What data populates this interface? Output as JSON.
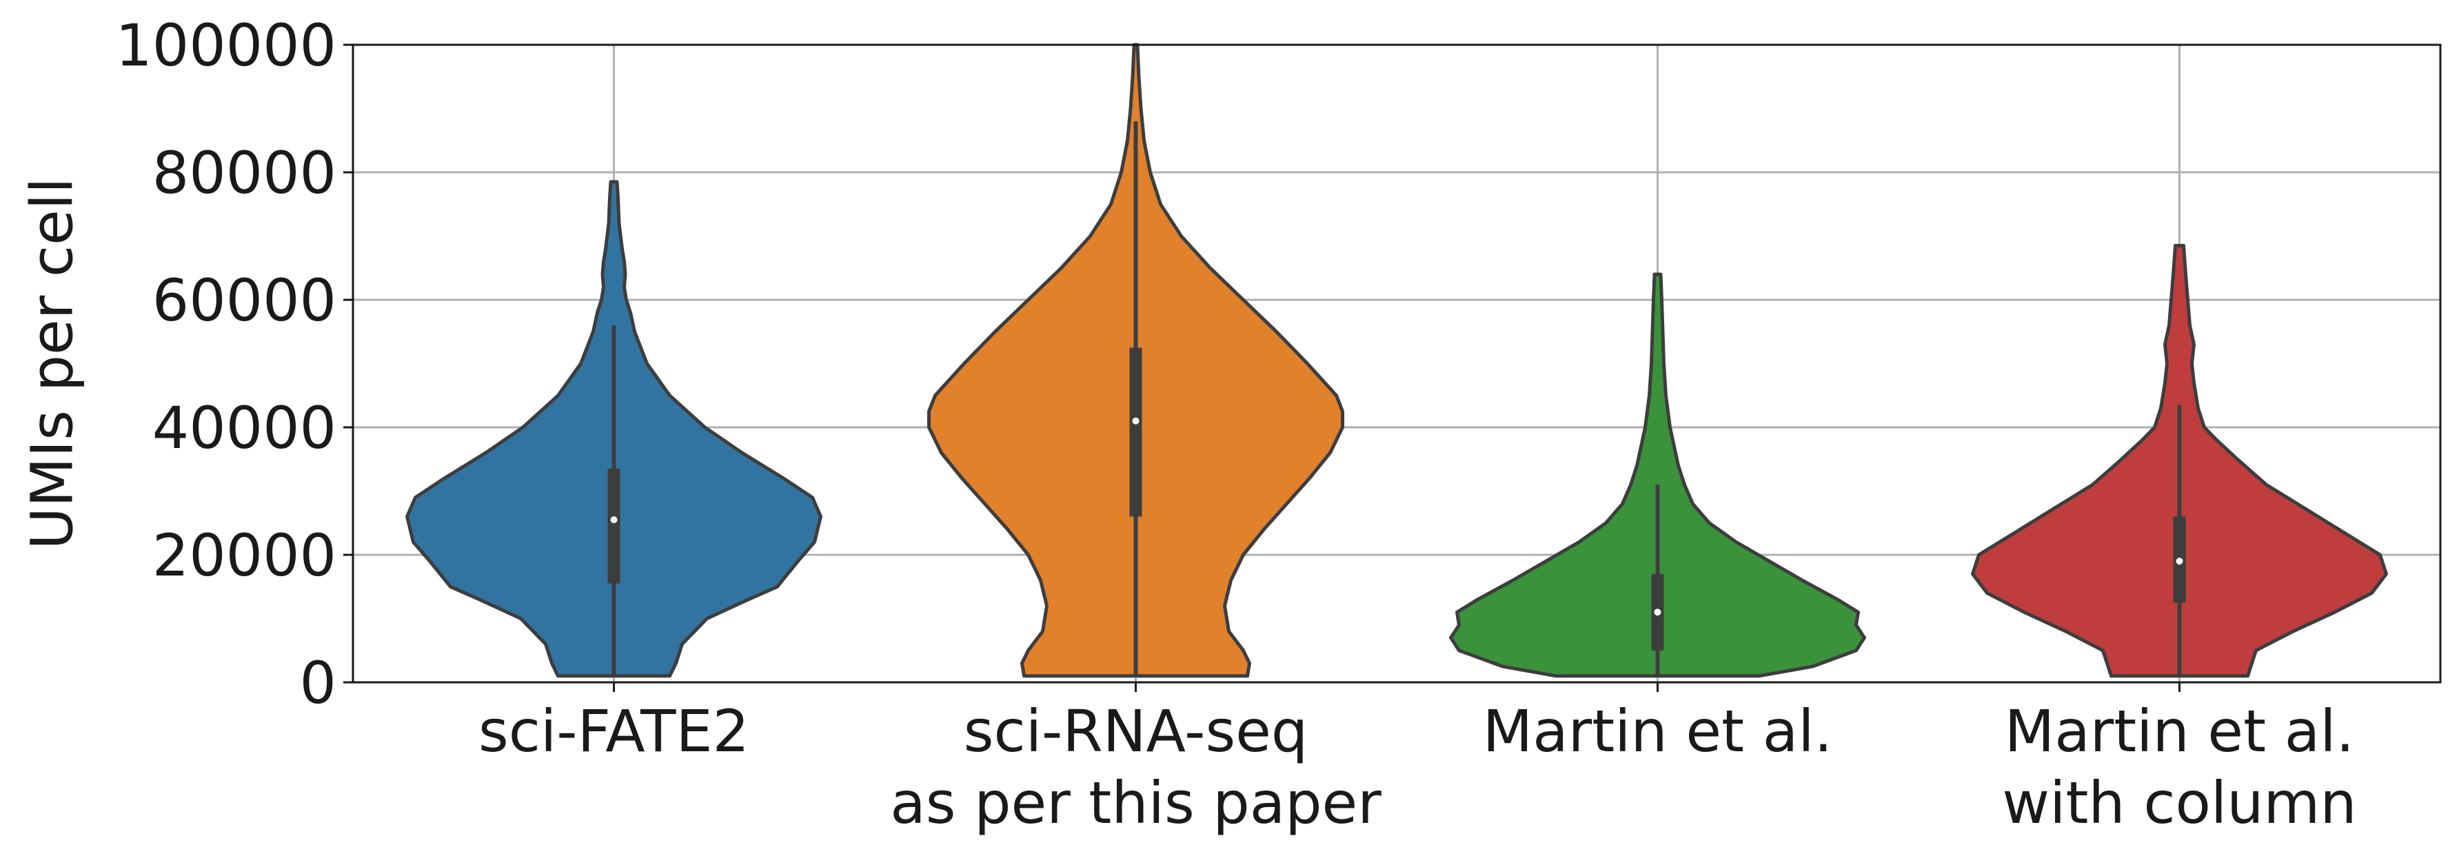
{
  "chart_data": {
    "type": "violin",
    "ylabel": "UMIs per cell",
    "xlabel": "",
    "ylim": [
      0,
      100000
    ],
    "yticks": [
      0,
      20000,
      40000,
      60000,
      80000,
      100000
    ],
    "ytick_labels": [
      "0",
      "20000",
      "40000",
      "60000",
      "80000",
      "100000"
    ],
    "grid": true,
    "categories": [
      [
        "sci-FATE2"
      ],
      [
        "sci-RNA-seq",
        "as per this paper"
      ],
      [
        "Martin et al."
      ],
      [
        "Martin et al.",
        "with column"
      ]
    ],
    "series": [
      {
        "color": "#3274a1",
        "median": 25500,
        "q1": 15500,
        "q3": 33500,
        "whisker_low": 1000,
        "whisker_high": 56000,
        "min": 1000,
        "max": 78500,
        "profile": [
          [
            1000,
            0.27
          ],
          [
            3000,
            0.3
          ],
          [
            6000,
            0.33
          ],
          [
            10000,
            0.45
          ],
          [
            13000,
            0.65
          ],
          [
            15000,
            0.79
          ],
          [
            19000,
            0.89
          ],
          [
            22000,
            0.97
          ],
          [
            26000,
            1.0
          ],
          [
            29000,
            0.96
          ],
          [
            32000,
            0.82
          ],
          [
            36000,
            0.62
          ],
          [
            40000,
            0.44
          ],
          [
            45000,
            0.27
          ],
          [
            50000,
            0.16
          ],
          [
            55000,
            0.1
          ],
          [
            58000,
            0.08
          ],
          [
            60000,
            0.06
          ],
          [
            62000,
            0.05
          ],
          [
            64000,
            0.055
          ],
          [
            66000,
            0.05
          ],
          [
            68000,
            0.04
          ],
          [
            72000,
            0.025
          ],
          [
            76000,
            0.02
          ],
          [
            78500,
            0.015
          ]
        ]
      },
      {
        "color": "#e1812c",
        "median": 41000,
        "q1": 26000,
        "q3": 52500,
        "whisker_low": 1000,
        "whisker_high": 88000,
        "min": 1000,
        "max": 100000,
        "profile": [
          [
            1000,
            0.54
          ],
          [
            3000,
            0.55
          ],
          [
            5000,
            0.52
          ],
          [
            8000,
            0.45
          ],
          [
            12000,
            0.43
          ],
          [
            16000,
            0.46
          ],
          [
            20000,
            0.52
          ],
          [
            24000,
            0.62
          ],
          [
            28000,
            0.73
          ],
          [
            32000,
            0.84
          ],
          [
            36000,
            0.94
          ],
          [
            40000,
            1.0
          ],
          [
            42500,
            1.0
          ],
          [
            45000,
            0.97
          ],
          [
            50000,
            0.83
          ],
          [
            55000,
            0.68
          ],
          [
            60000,
            0.52
          ],
          [
            65000,
            0.36
          ],
          [
            70000,
            0.22
          ],
          [
            75000,
            0.12
          ],
          [
            80000,
            0.07
          ],
          [
            85000,
            0.04
          ],
          [
            90000,
            0.025
          ],
          [
            95000,
            0.015
          ],
          [
            100000,
            0.008
          ]
        ]
      },
      {
        "color": "#3a923a",
        "median": 11000,
        "q1": 5000,
        "q3": 17000,
        "whisker_low": 1000,
        "whisker_high": 31000,
        "min": 1000,
        "max": 64000,
        "profile": [
          [
            1000,
            0.49
          ],
          [
            2500,
            0.75
          ],
          [
            5000,
            0.96
          ],
          [
            7000,
            1.0
          ],
          [
            9000,
            0.96
          ],
          [
            11000,
            0.97
          ],
          [
            13000,
            0.87
          ],
          [
            16000,
            0.7
          ],
          [
            19000,
            0.54
          ],
          [
            22000,
            0.38
          ],
          [
            25000,
            0.25
          ],
          [
            28000,
            0.17
          ],
          [
            31000,
            0.13
          ],
          [
            34000,
            0.1
          ],
          [
            37000,
            0.08
          ],
          [
            40000,
            0.06
          ],
          [
            45000,
            0.04
          ],
          [
            50000,
            0.03
          ],
          [
            55000,
            0.025
          ],
          [
            60000,
            0.02
          ],
          [
            64000,
            0.015
          ]
        ]
      },
      {
        "color": "#c03d3e",
        "median": 19000,
        "q1": 12500,
        "q3": 26000,
        "whisker_low": 1000,
        "whisker_high": 43500,
        "min": 1000,
        "max": 68500,
        "profile": [
          [
            1000,
            0.33
          ],
          [
            3000,
            0.35
          ],
          [
            5000,
            0.37
          ],
          [
            8000,
            0.55
          ],
          [
            11000,
            0.75
          ],
          [
            14000,
            0.93
          ],
          [
            17000,
            1.0
          ],
          [
            20000,
            0.97
          ],
          [
            23000,
            0.82
          ],
          [
            27000,
            0.62
          ],
          [
            31000,
            0.42
          ],
          [
            35000,
            0.28
          ],
          [
            38000,
            0.18
          ],
          [
            40000,
            0.12
          ],
          [
            43000,
            0.09
          ],
          [
            47000,
            0.07
          ],
          [
            50000,
            0.06
          ],
          [
            53000,
            0.07
          ],
          [
            56000,
            0.05
          ],
          [
            60000,
            0.04
          ],
          [
            64000,
            0.03
          ],
          [
            68500,
            0.02
          ]
        ]
      }
    ]
  }
}
